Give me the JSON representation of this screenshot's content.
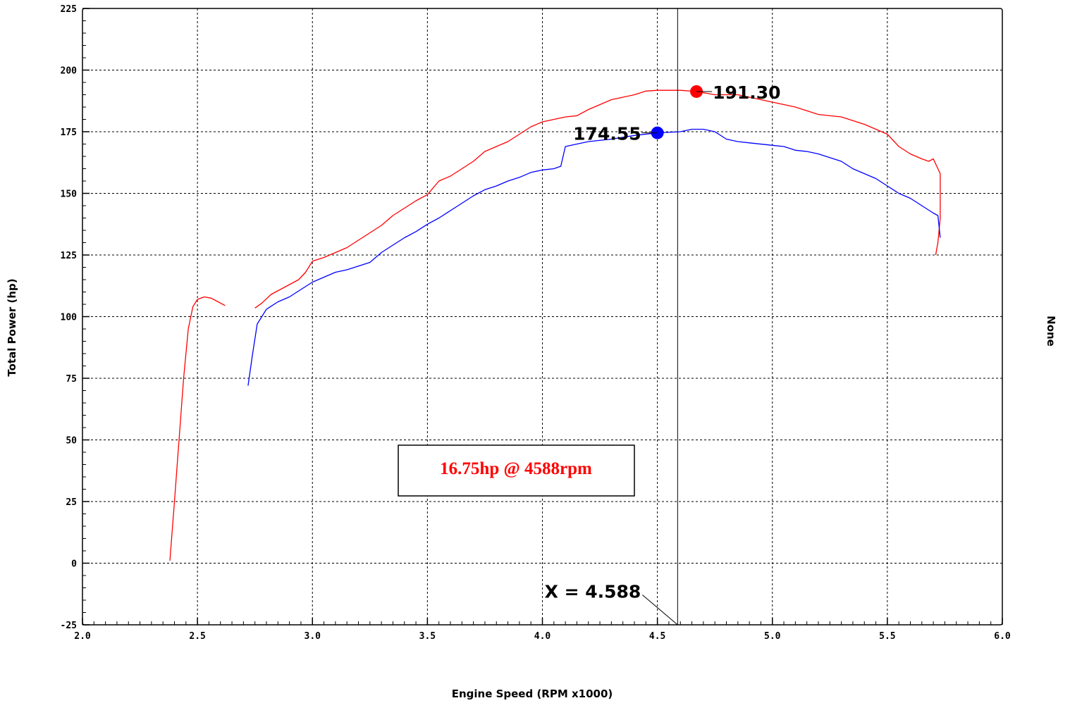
{
  "colors": {
    "series_a": "#ff0000",
    "series_b": "#0000ff",
    "grid": "#000000"
  },
  "chart_data": {
    "type": "line",
    "xlabel": "Engine Speed (RPM x1000)",
    "ylabel": "Total Power (hp)",
    "right_label": "None",
    "xlim": [
      2.0,
      6.0
    ],
    "ylim": [
      -25,
      225
    ],
    "xticks": [
      "2.0",
      "2.5",
      "3.0",
      "3.5",
      "4.0",
      "4.5",
      "5.0",
      "5.5",
      "6.0"
    ],
    "yticks": [
      "-25",
      "0",
      "25",
      "50",
      "75",
      "100",
      "125",
      "150",
      "175",
      "200",
      "225"
    ],
    "grid": true,
    "series": [
      {
        "color": "#ff0000",
        "segments": [
          [
            [
              2.38,
              1
            ],
            [
              2.4,
              25
            ],
            [
              2.42,
              50
            ],
            [
              2.44,
              75
            ],
            [
              2.46,
              95
            ],
            [
              2.48,
              104
            ],
            [
              2.5,
              107
            ],
            [
              2.53,
              108
            ],
            [
              2.56,
              107.5
            ],
            [
              2.59,
              106
            ],
            [
              2.62,
              104.5
            ]
          ],
          [
            [
              2.75,
              103.5
            ],
            [
              2.78,
              105.5
            ],
            [
              2.82,
              109
            ],
            [
              2.88,
              112
            ],
            [
              2.94,
              115
            ],
            [
              2.97,
              118
            ],
            [
              3.0,
              122.5
            ],
            [
              3.05,
              124
            ],
            [
              3.1,
              126
            ],
            [
              3.15,
              128
            ],
            [
              3.2,
              131
            ],
            [
              3.25,
              134
            ],
            [
              3.3,
              137
            ],
            [
              3.35,
              141
            ],
            [
              3.4,
              144
            ],
            [
              3.45,
              147
            ],
            [
              3.5,
              149.5
            ],
            [
              3.55,
              155
            ],
            [
              3.6,
              157
            ],
            [
              3.65,
              160
            ],
            [
              3.7,
              163
            ],
            [
              3.75,
              167
            ],
            [
              3.8,
              169
            ],
            [
              3.85,
              171
            ],
            [
              3.9,
              174
            ],
            [
              3.95,
              177
            ],
            [
              4.0,
              179
            ],
            [
              4.05,
              180
            ],
            [
              4.1,
              181
            ],
            [
              4.15,
              181.5
            ],
            [
              4.2,
              184
            ],
            [
              4.25,
              186
            ],
            [
              4.3,
              188
            ],
            [
              4.35,
              189
            ],
            [
              4.4,
              190
            ],
            [
              4.45,
              191.5
            ],
            [
              4.5,
              191.8
            ],
            [
              4.55,
              191.8
            ],
            [
              4.6,
              191.8
            ],
            [
              4.67,
              191.3
            ],
            [
              4.75,
              190
            ],
            [
              4.85,
              190
            ],
            [
              5.0,
              187
            ],
            [
              5.1,
              185
            ],
            [
              5.2,
              182
            ],
            [
              5.3,
              181
            ],
            [
              5.4,
              178
            ],
            [
              5.45,
              176
            ],
            [
              5.5,
              174
            ],
            [
              5.55,
              169
            ],
            [
              5.6,
              166
            ],
            [
              5.65,
              164
            ],
            [
              5.68,
              163
            ],
            [
              5.7,
              164
            ],
            [
              5.72,
              160
            ],
            [
              5.73,
              158
            ],
            [
              5.73,
              140
            ],
            [
              5.72,
              130
            ],
            [
              5.71,
              125
            ]
          ]
        ]
      },
      {
        "color": "#0000ff",
        "segments": [
          [
            [
              2.72,
              72
            ],
            [
              2.74,
              85
            ],
            [
              2.76,
              97
            ],
            [
              2.8,
              103
            ],
            [
              2.85,
              106
            ],
            [
              2.9,
              108
            ],
            [
              2.95,
              111
            ],
            [
              3.0,
              114
            ],
            [
              3.05,
              116
            ],
            [
              3.1,
              118
            ],
            [
              3.15,
              119
            ],
            [
              3.2,
              120.5
            ],
            [
              3.25,
              122
            ],
            [
              3.3,
              126
            ],
            [
              3.35,
              129
            ],
            [
              3.4,
              132
            ],
            [
              3.45,
              134.5
            ],
            [
              3.5,
              137.5
            ],
            [
              3.55,
              140
            ],
            [
              3.6,
              143
            ],
            [
              3.65,
              146
            ],
            [
              3.7,
              149
            ],
            [
              3.75,
              151.5
            ],
            [
              3.8,
              153
            ],
            [
              3.85,
              155
            ],
            [
              3.9,
              156.5
            ],
            [
              3.95,
              158.5
            ],
            [
              4.0,
              159.5
            ],
            [
              4.05,
              160
            ],
            [
              4.08,
              161
            ],
            [
              4.1,
              169
            ],
            [
              4.15,
              170
            ],
            [
              4.2,
              171
            ],
            [
              4.3,
              172
            ],
            [
              4.4,
              173.5
            ],
            [
              4.5,
              174.55
            ],
            [
              4.6,
              175
            ],
            [
              4.65,
              176
            ],
            [
              4.7,
              176
            ],
            [
              4.75,
              175
            ],
            [
              4.8,
              172
            ],
            [
              4.85,
              171
            ],
            [
              4.9,
              170.5
            ],
            [
              5.0,
              169.5
            ],
            [
              5.05,
              169
            ],
            [
              5.1,
              167.5
            ],
            [
              5.15,
              167
            ],
            [
              5.2,
              166
            ],
            [
              5.3,
              163
            ],
            [
              5.35,
              160
            ],
            [
              5.4,
              158
            ],
            [
              5.45,
              156
            ],
            [
              5.5,
              153
            ],
            [
              5.55,
              150
            ],
            [
              5.6,
              148
            ],
            [
              5.65,
              145
            ],
            [
              5.7,
              142
            ],
            [
              5.72,
              141
            ],
            [
              5.73,
              132
            ]
          ]
        ]
      }
    ],
    "peaks": [
      {
        "x": 4.67,
        "y": 191.3,
        "label": "191.30",
        "color": "#ff0000",
        "label_side": "right"
      },
      {
        "x": 4.5,
        "y": 174.55,
        "label": "174.55",
        "color": "#0000ff",
        "label_side": "left"
      }
    ],
    "cursor": {
      "x": 4.588,
      "label": "X = 4.588"
    },
    "annotation": {
      "text": "16.75hp @ 4588rpm",
      "color": "#ff0000"
    }
  }
}
